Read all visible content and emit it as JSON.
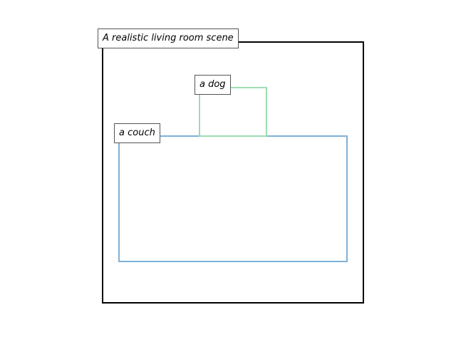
{
  "scene": {
    "label": "A realistic living room scene",
    "color": "#000000"
  },
  "objects": [
    {
      "label": "a couch",
      "color": "#7fb0d8"
    },
    {
      "label": "a dog",
      "color": "#9ddcb0"
    }
  ]
}
